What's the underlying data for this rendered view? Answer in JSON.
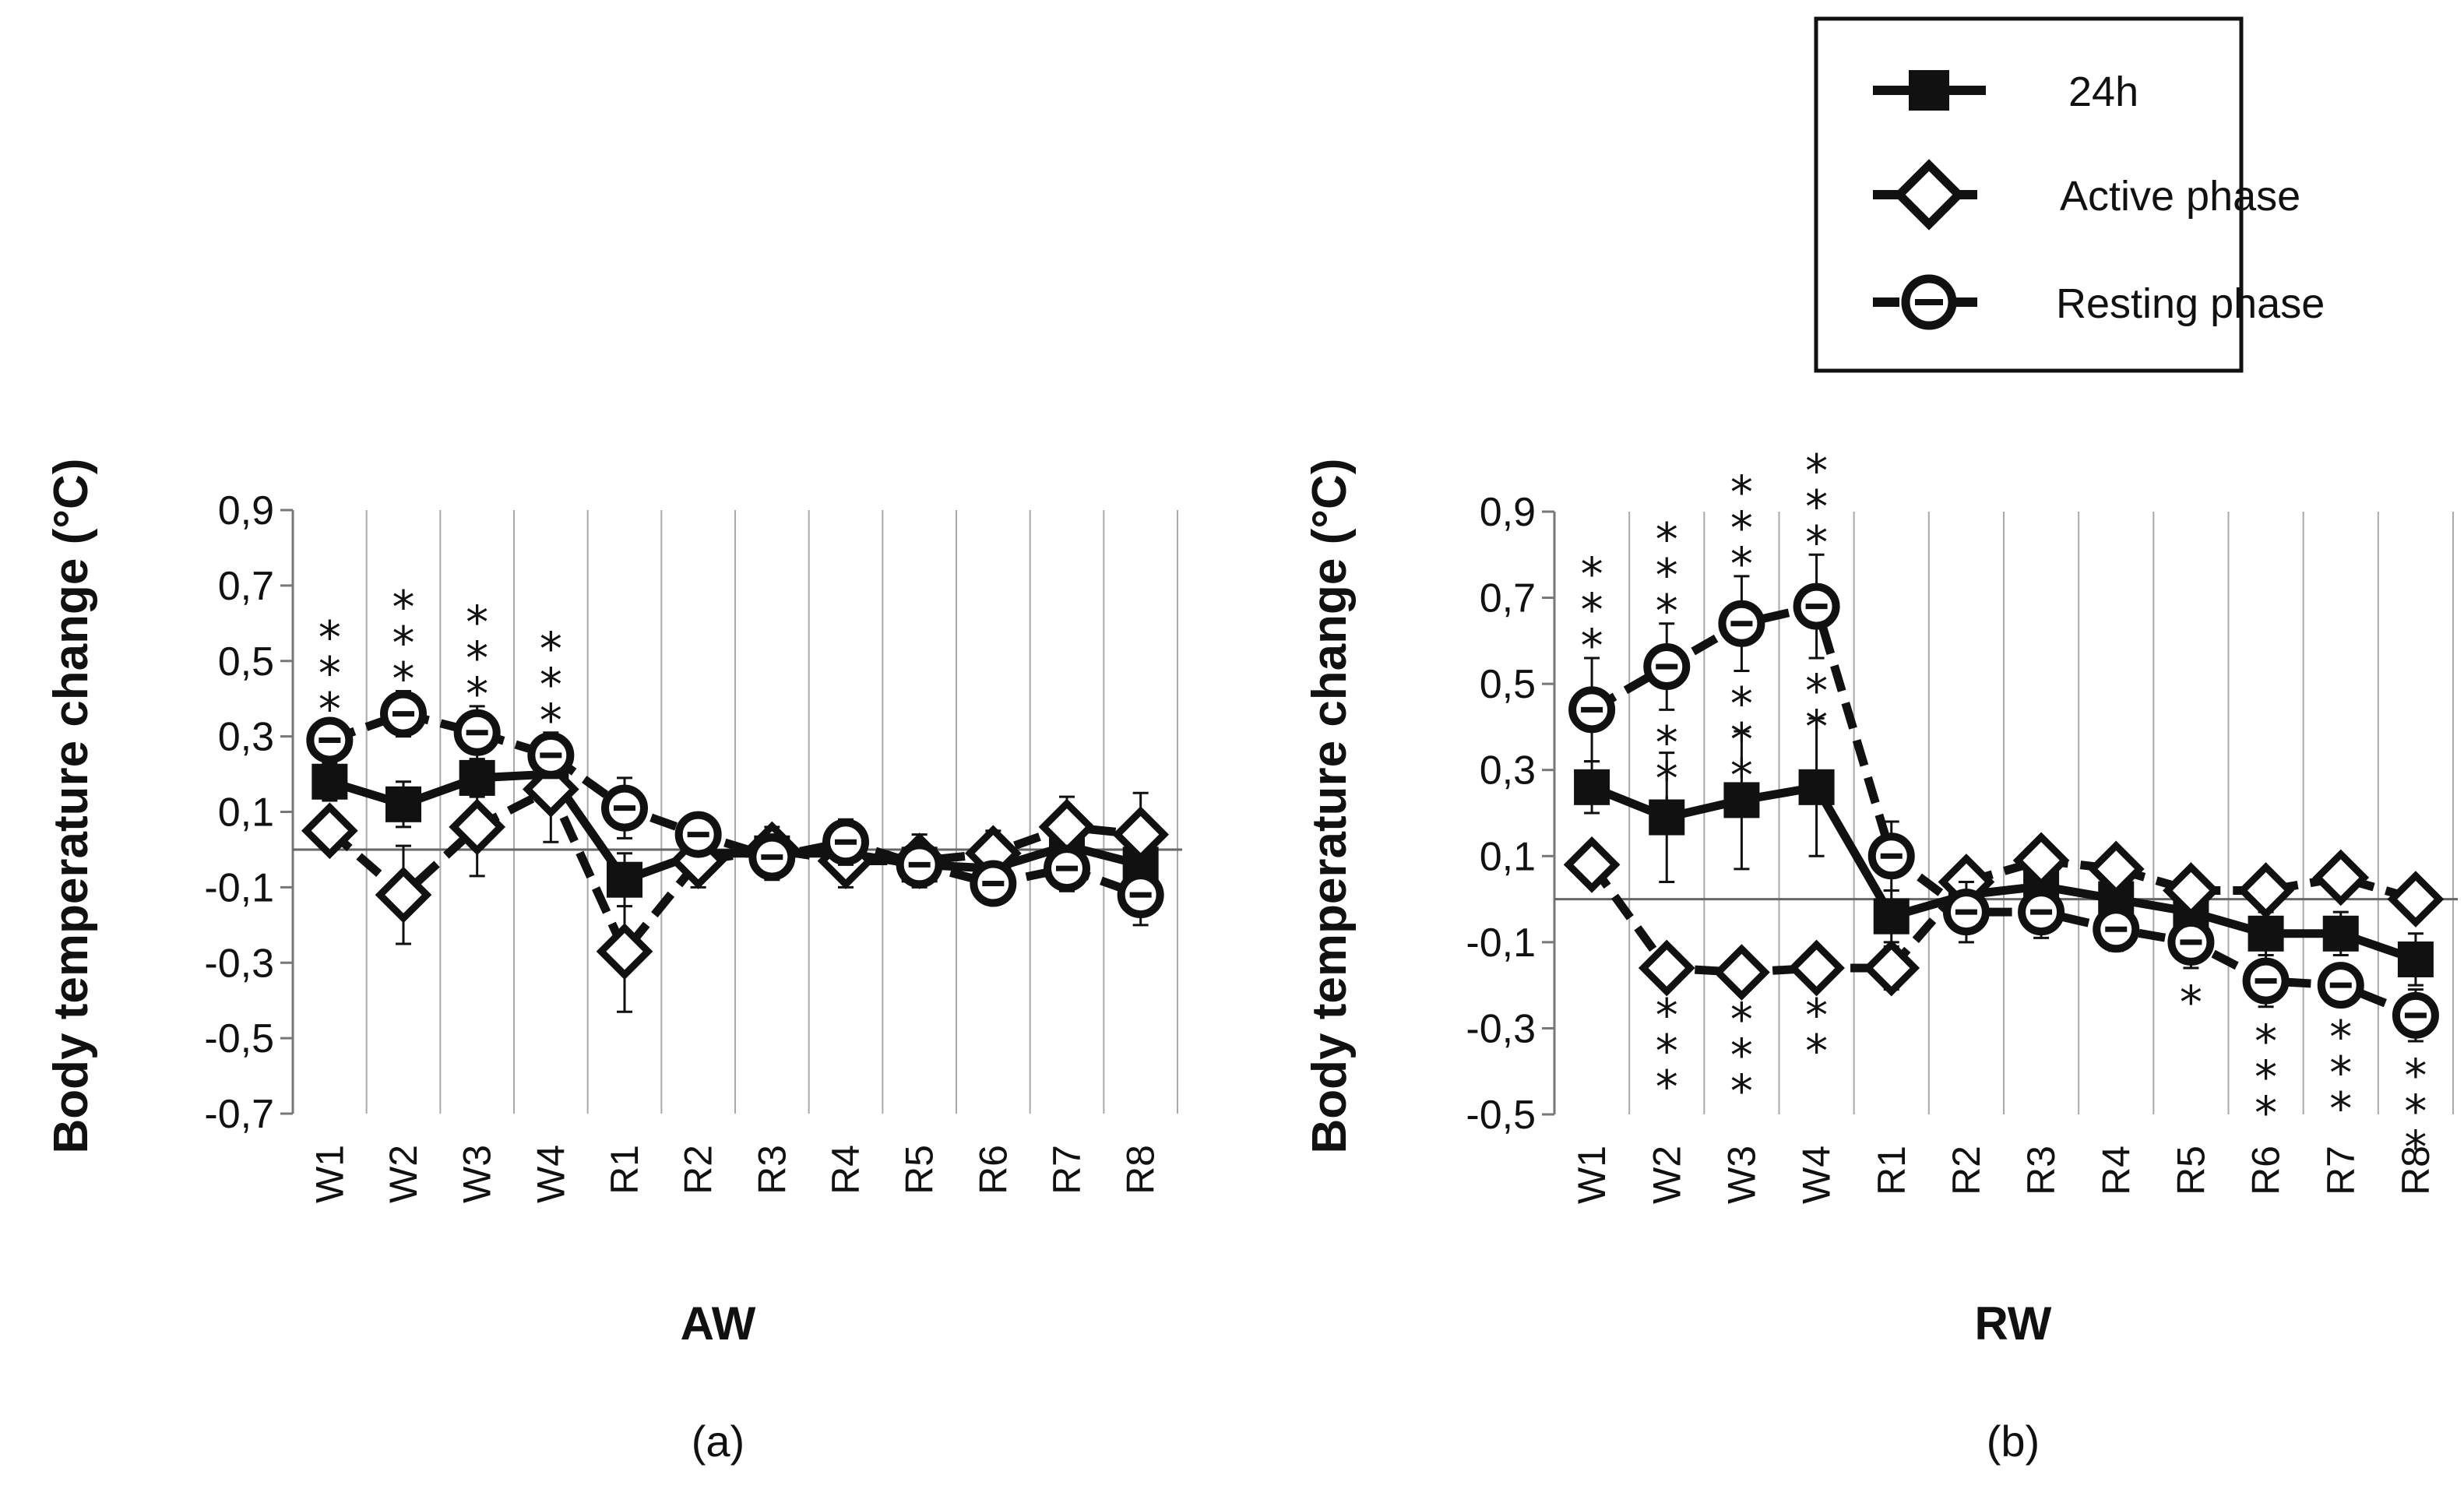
{
  "legend": {
    "items": [
      {
        "label": "24h",
        "marker": "square-filled",
        "line": "solid"
      },
      {
        "label": "Active phase",
        "marker": "diamond-open",
        "line": "dashed"
      },
      {
        "label": "Resting phase",
        "marker": "circle-open",
        "line": "dashed"
      }
    ]
  },
  "chart_data": [
    {
      "type": "line",
      "panel_label": "(a)",
      "title": "AW",
      "xlabel": "AW",
      "ylabel": "Body temperature change (°C)",
      "ylim": [
        -0.7,
        0.9
      ],
      "yticks": [
        -0.7,
        -0.5,
        -0.3,
        -0.1,
        0.1,
        0.3,
        0.5,
        0.7,
        0.9
      ],
      "ytick_labels": [
        "-0,7",
        "-0,5",
        "-0,3",
        "-0,1",
        "0,1",
        "0,3",
        "0,5",
        "0,7",
        "0,9"
      ],
      "categories": [
        "W1",
        "W2",
        "W3",
        "W4",
        "R1",
        "R2",
        "R3",
        "R4",
        "R5",
        "R6",
        "R7",
        "R8"
      ],
      "reference_line": 0,
      "series": [
        {
          "name": "24h",
          "marker": "square-filled",
          "line": "solid",
          "values": [
            0.18,
            0.12,
            0.19,
            0.2,
            -0.08,
            -0.01,
            -0.01,
            -0.01,
            -0.04,
            -0.05,
            0.01,
            -0.04
          ],
          "errors": [
            0.05,
            0.06,
            0.05,
            0.07,
            0.07,
            0.05,
            0.04,
            0.05,
            0.05,
            0.05,
            0.05,
            0.06
          ]
        },
        {
          "name": "Active phase",
          "marker": "diamond-open",
          "line": "dashed",
          "values": [
            0.05,
            -0.12,
            0.06,
            0.16,
            -0.27,
            -0.03,
            0.0,
            -0.03,
            -0.03,
            -0.01,
            0.06,
            0.04
          ],
          "errors": [
            0.05,
            0.13,
            0.13,
            0.14,
            0.16,
            0.07,
            0.06,
            0.07,
            0.07,
            0.06,
            0.08,
            0.11
          ]
        },
        {
          "name": "Resting phase",
          "marker": "circle-open",
          "line": "dashed",
          "values": [
            0.29,
            0.36,
            0.31,
            0.25,
            0.11,
            0.04,
            -0.02,
            0.02,
            -0.04,
            -0.09,
            -0.05,
            -0.12
          ],
          "errors": [
            0.05,
            0.06,
            0.07,
            0.06,
            0.08,
            0.05,
            0.06,
            0.06,
            0.05,
            0.05,
            0.06,
            0.08
          ]
        }
      ],
      "annotations": [
        {
          "category": "W1",
          "text": "***",
          "position": "above"
        },
        {
          "category": "W2",
          "text": "***",
          "position": "above"
        },
        {
          "category": "W3",
          "text": "***",
          "position": "above"
        },
        {
          "category": "W4",
          "text": "***",
          "position": "above"
        }
      ]
    },
    {
      "type": "line",
      "panel_label": "(b)",
      "title": "RW",
      "xlabel": "RW",
      "ylabel": "Body temperature change (°C)",
      "ylim": [
        -0.5,
        0.9
      ],
      "yticks": [
        -0.5,
        -0.3,
        -0.1,
        0.1,
        0.3,
        0.5,
        0.7,
        0.9
      ],
      "ytick_labels": [
        "-0,5",
        "-0,3",
        "-0,1",
        "0,1",
        "0,3",
        "0,5",
        "0,7",
        "0,9"
      ],
      "categories": [
        "W1",
        "W2",
        "W3",
        "W4",
        "R1",
        "R2",
        "R3",
        "R4",
        "R5",
        "R6",
        "R7",
        "R8"
      ],
      "reference_line": 0,
      "series": [
        {
          "name": "24h",
          "marker": "square-filled",
          "line": "solid",
          "values": [
            0.26,
            0.19,
            0.23,
            0.26,
            -0.04,
            0.01,
            0.03,
            0.0,
            -0.03,
            -0.08,
            -0.08,
            -0.14
          ],
          "errors": [
            0.06,
            0.15,
            0.16,
            0.16,
            0.06,
            0.05,
            0.05,
            0.05,
            0.05,
            0.05,
            0.05,
            0.06
          ]
        },
        {
          "name": "Active phase",
          "marker": "diamond-open",
          "line": "dashed",
          "values": [
            0.08,
            -0.16,
            -0.17,
            -0.16,
            -0.16,
            0.04,
            0.09,
            0.07,
            0.02,
            0.02,
            0.05,
            0.0
          ],
          "errors": [
            0.03,
            0.03,
            0.03,
            0.03,
            0.05,
            0.04,
            0.04,
            0.04,
            0.04,
            0.03,
            0.03,
            0.03
          ]
        },
        {
          "name": "Resting phase",
          "marker": "circle-open",
          "line": "dashed",
          "values": [
            0.44,
            0.54,
            0.64,
            0.68,
            0.1,
            -0.03,
            -0.03,
            -0.07,
            -0.1,
            -0.19,
            -0.2,
            -0.27
          ],
          "errors": [
            0.12,
            0.1,
            0.11,
            0.12,
            0.08,
            0.07,
            0.06,
            0.05,
            0.06,
            0.06,
            0.04,
            0.06
          ]
        }
      ],
      "annotations": [
        {
          "category": "W1",
          "text": "***",
          "position": "above"
        },
        {
          "category": "W2",
          "text": "***",
          "position": "above"
        },
        {
          "category": "W3",
          "text": "***",
          "position": "above"
        },
        {
          "category": "W4",
          "text": "***",
          "position": "above"
        },
        {
          "category": "W2",
          "text": "***",
          "position": "middle"
        },
        {
          "category": "W3",
          "text": "***",
          "position": "middle"
        },
        {
          "category": "W4",
          "text": "**",
          "position": "middle"
        },
        {
          "category": "W2",
          "text": "***",
          "position": "below"
        },
        {
          "category": "W3",
          "text": "***",
          "position": "below"
        },
        {
          "category": "W4",
          "text": "**",
          "position": "below"
        },
        {
          "category": "R5",
          "text": "*",
          "position": "below"
        },
        {
          "category": "R6",
          "text": "***",
          "position": "below"
        },
        {
          "category": "R7",
          "text": "***",
          "position": "below"
        },
        {
          "category": "R8",
          "text": "***",
          "position": "below"
        }
      ]
    }
  ]
}
